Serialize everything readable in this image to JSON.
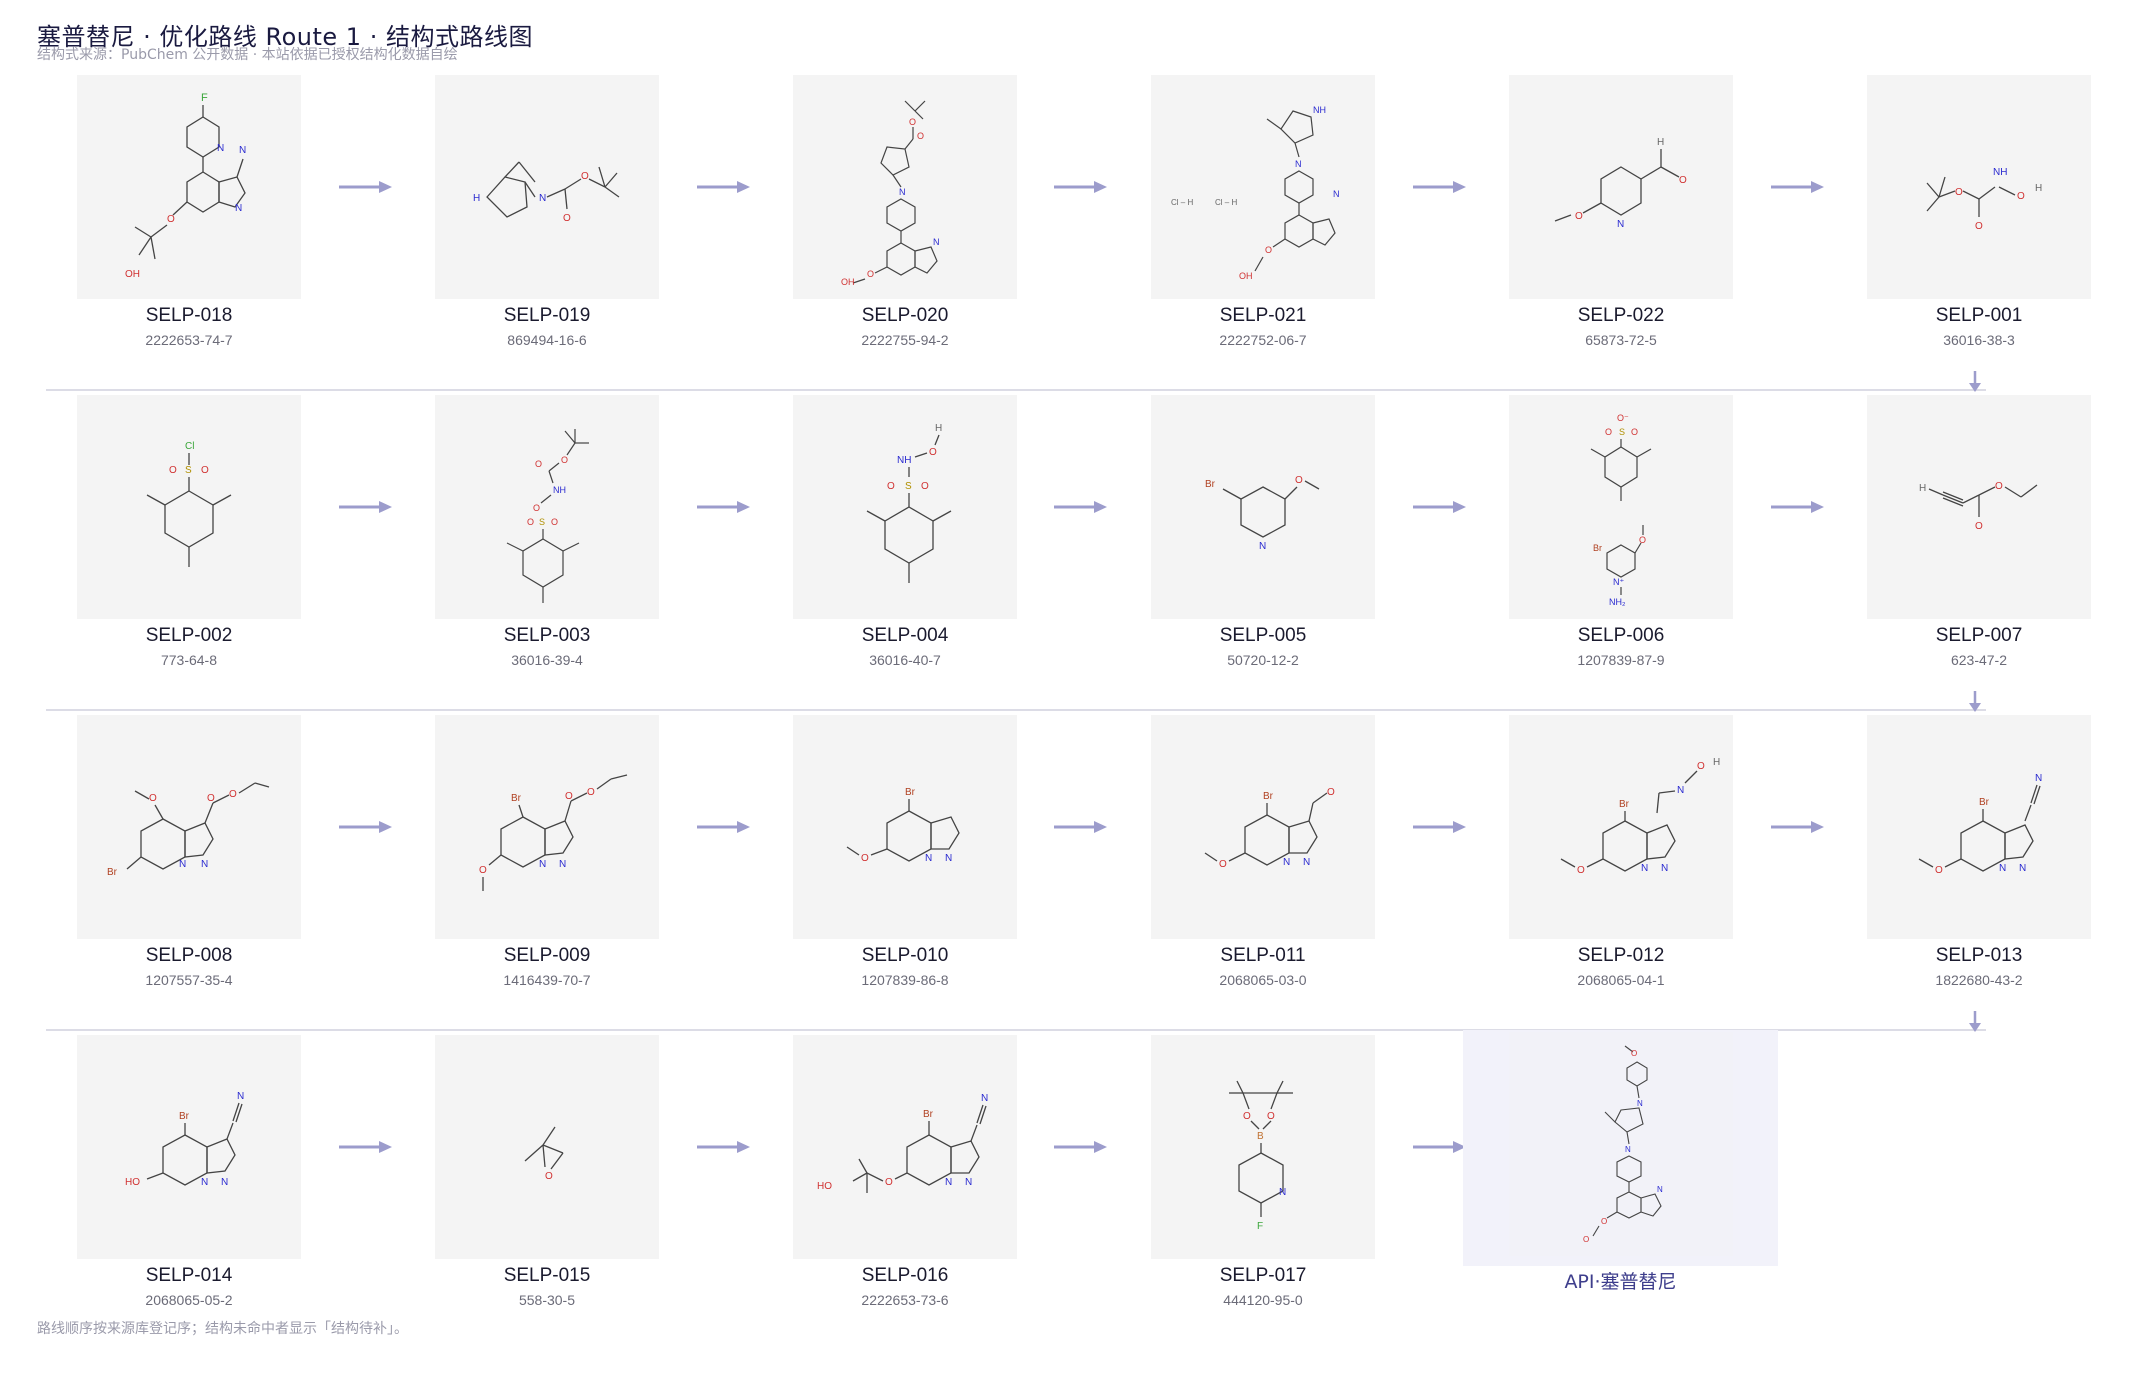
{
  "header": {
    "title": "塞普替尼 · 优化路线 Route 1 · 结构式路线图",
    "subtitle": "结构式来源：PubChem 公开数据 · 本站依据已授权结构化数据自绘"
  },
  "footer": {
    "note": "路线顺序按来源库登记序；结构未命中者显示「结构待补」。"
  },
  "colors": {
    "arrow": "#9c9ccc",
    "tile_bg": "#f4f4f4",
    "api_bg": "#f2f2fa",
    "separator": "#dcdce6"
  },
  "compounds": [
    {
      "code": "SELP-018",
      "cas": "2222653-74-7"
    },
    {
      "code": "SELP-019",
      "cas": "869494-16-6"
    },
    {
      "code": "SELP-020",
      "cas": "2222755-94-2"
    },
    {
      "code": "SELP-021",
      "cas": "2222752-06-7"
    },
    {
      "code": "SELP-022",
      "cas": "65873-72-5"
    },
    {
      "code": "SELP-001",
      "cas": "36016-38-3"
    },
    {
      "code": "SELP-002",
      "cas": "773-64-8"
    },
    {
      "code": "SELP-003",
      "cas": "36016-39-4"
    },
    {
      "code": "SELP-004",
      "cas": "36016-40-7"
    },
    {
      "code": "SELP-005",
      "cas": "50720-12-2"
    },
    {
      "code": "SELP-006",
      "cas": "1207839-87-9"
    },
    {
      "code": "SELP-007",
      "cas": "623-47-2"
    },
    {
      "code": "SELP-008",
      "cas": "1207557-35-4"
    },
    {
      "code": "SELP-009",
      "cas": "1416439-70-7"
    },
    {
      "code": "SELP-010",
      "cas": "1207839-86-8"
    },
    {
      "code": "SELP-011",
      "cas": "2068065-03-0"
    },
    {
      "code": "SELP-012",
      "cas": "2068065-04-1"
    },
    {
      "code": "SELP-013",
      "cas": "1822680-43-2"
    },
    {
      "code": "SELP-014",
      "cas": "2068065-05-2"
    },
    {
      "code": "SELP-015",
      "cas": "558-30-5"
    },
    {
      "code": "SELP-016",
      "cas": "2222653-73-6"
    },
    {
      "code": "SELP-017",
      "cas": "444120-95-0"
    }
  ],
  "api": {
    "label": "API·塞普替尼"
  },
  "atom_labels": {
    "F": "F",
    "N": "N",
    "O": "O",
    "H": "H",
    "Br": "Br",
    "Cl": "Cl",
    "S": "S",
    "B": "B",
    "OH": "OH",
    "NH": "NH",
    "HO": "HO",
    "NH2": "NH₂",
    "HCl": "Cl – H",
    "Ominus": "O⁻",
    "Nplus": "N⁺"
  },
  "icons": {
    "arrow_right": "arrow-right-icon",
    "arrow_down": "arrow-down-icon"
  }
}
